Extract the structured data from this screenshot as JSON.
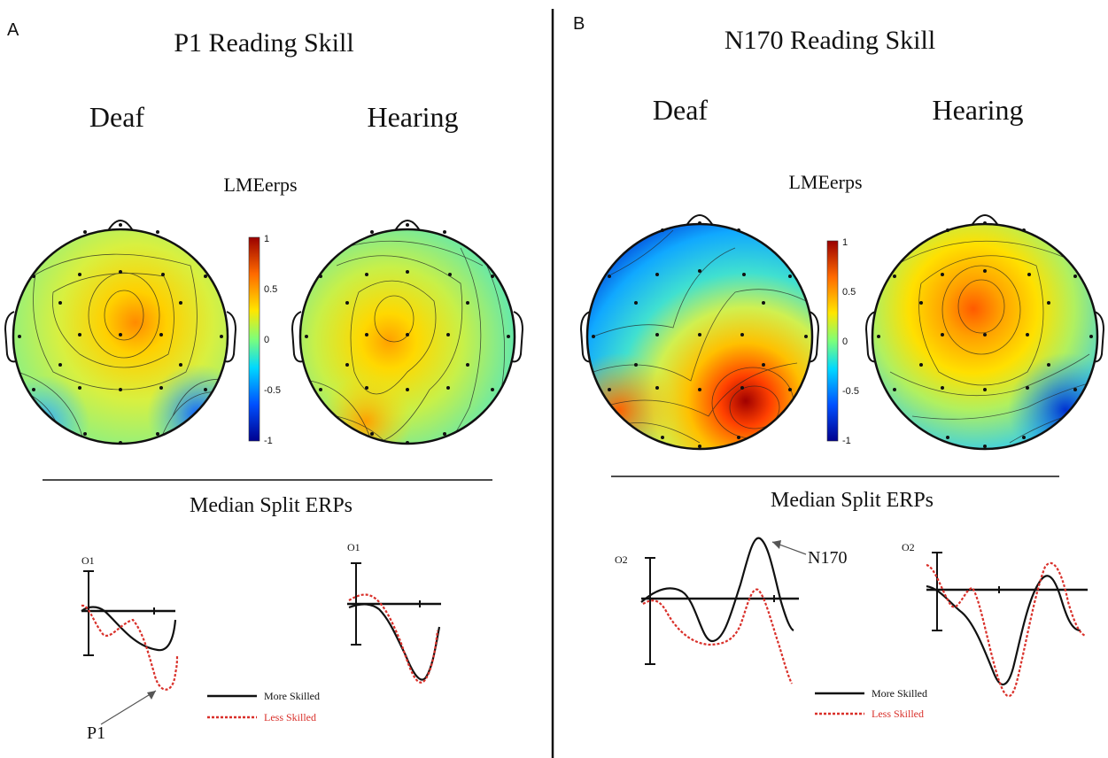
{
  "panels": [
    {
      "letter": "A",
      "title": "P1 Reading Skill",
      "group_left": "Deaf",
      "group_right": "Hearing",
      "map_label": "LMEerps",
      "colorbar_ticks": [
        "1",
        "0.5",
        "0",
        "-0.5",
        "-1"
      ],
      "erp_title": "Median Split ERPs",
      "electrode_left": "O1",
      "electrode_right": "O1",
      "component_label": "P1",
      "legend": {
        "more": "More Skilled",
        "less": "Less Skilled"
      }
    },
    {
      "letter": "B",
      "title": "N170 Reading Skill",
      "group_left": "Deaf",
      "group_right": "Hearing",
      "map_label": "LMEerps",
      "colorbar_ticks": [
        "1",
        "0.5",
        "0",
        "-0.5",
        "-1"
      ],
      "erp_title": "Median Split ERPs",
      "electrode_left": "O2",
      "electrode_right": "O2",
      "component_label": "N170",
      "legend": {
        "more": "More Skilled",
        "less": "Less Skilled"
      }
    }
  ],
  "colors": {
    "more_skilled": "#111111",
    "less_skilled": "#d9302a",
    "colormap": [
      "#00008f",
      "#0050ff",
      "#00d8ff",
      "#7dff7a",
      "#ffe600",
      "#ff6a00",
      "#9a0000"
    ]
  }
}
